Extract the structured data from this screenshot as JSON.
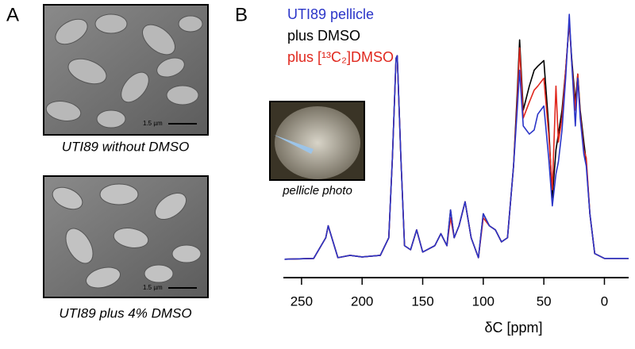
{
  "panel_a": {
    "label": "A",
    "images": [
      {
        "caption": "UTI89 without DMSO",
        "scale_bar": "1.5 µm"
      },
      {
        "caption": "UTI89 plus 4% DMSO",
        "scale_bar": "1.5 µm"
      }
    ]
  },
  "panel_b": {
    "label": "B",
    "inset_caption": "pellicle photo"
  },
  "chart_data": {
    "type": "line",
    "xlabel": "δC [ppm]",
    "x": [
      264,
      240,
      230,
      228,
      225,
      220,
      210,
      200,
      185,
      178,
      175,
      172,
      171,
      168,
      165,
      160,
      155,
      150,
      140,
      135,
      130,
      127,
      124,
      120,
      115,
      110,
      104,
      100,
      95,
      90,
      85,
      80,
      75,
      72,
      70,
      67,
      62,
      58,
      55,
      50,
      46,
      43,
      40,
      38,
      35,
      32,
      29,
      27,
      24,
      22,
      20,
      17,
      15,
      12,
      8,
      0,
      -20
    ],
    "xlim": [
      265,
      -20
    ],
    "xticks": [
      250,
      200,
      150,
      100,
      50,
      0
    ],
    "ylim": [
      0,
      105
    ],
    "series": [
      {
        "name": "plus DMSO",
        "color": "#000000",
        "values": [
          4.1,
          4.4,
          12.5,
          17.2,
          12.5,
          4.7,
          5.6,
          5.0,
          5.6,
          12.5,
          43.8,
          82.8,
          83.8,
          43.8,
          9.4,
          7.8,
          15.6,
          6.9,
          9.4,
          14.1,
          9.4,
          23.4,
          12.5,
          17.2,
          26.6,
          12.5,
          4.7,
          21.9,
          17.2,
          15.6,
          10.9,
          12.5,
          40.6,
          68.8,
          90,
          62.5,
          71.9,
          78.1,
          79.7,
          81.9,
          56.3,
          28.1,
          46.9,
          53.1,
          62.5,
          78.1,
          96.9,
          82.8,
          65.6,
          76.6,
          62.5,
          50,
          42.2,
          21.9,
          6.3,
          4.4,
          4.4
        ]
      },
      {
        "name": "plus [¹³C₂]DMSO",
        "color": "#e0281e",
        "values": [
          4.1,
          4.4,
          12.5,
          17.2,
          12.5,
          4.7,
          5.6,
          5.0,
          5.6,
          12.5,
          43.8,
          82.8,
          83.8,
          43.8,
          9.4,
          7.8,
          15.6,
          6.9,
          9.4,
          14.1,
          9.4,
          20.3,
          12.5,
          17.2,
          26.6,
          12.5,
          4.7,
          20.3,
          17.2,
          15.6,
          10.9,
          12.5,
          40.6,
          65.6,
          86.9,
          59.4,
          65.6,
          70.3,
          71.9,
          75,
          53.1,
          31.3,
          71.9,
          50,
          59.4,
          78.1,
          97.5,
          81.3,
          62.5,
          76.6,
          60.9,
          46.9,
          43.8,
          21.9,
          6.3,
          4.4,
          4.4
        ]
      },
      {
        "name": "UTI89 pellicle",
        "color": "#2b35c8",
        "values": [
          4.1,
          4.4,
          12.5,
          17.2,
          12.5,
          4.7,
          5.6,
          5.0,
          5.6,
          12.5,
          43.8,
          82.8,
          83.8,
          43.8,
          9.4,
          7.8,
          15.6,
          6.9,
          9.4,
          14.1,
          9.4,
          23.4,
          12.5,
          17.2,
          26.6,
          12.5,
          4.7,
          21.9,
          17.2,
          15.6,
          10.9,
          12.5,
          40.6,
          62.5,
          78.1,
          56.3,
          53.1,
          54.7,
          60.9,
          64.1,
          43.8,
          25,
          37.5,
          42.2,
          54.7,
          75,
          100,
          81.3,
          56.3,
          75,
          59.4,
          45.3,
          40.6,
          21.9,
          6.3,
          4.4,
          4.4
        ]
      }
    ]
  }
}
